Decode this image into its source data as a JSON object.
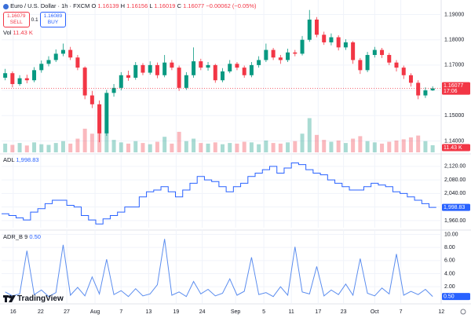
{
  "header": {
    "symbol": "Euro / U.S. Dollar · 1h · FXCM",
    "ohlc": [
      {
        "label": "O",
        "value": 1.16139
      },
      {
        "label": "H",
        "value": 1.16156
      },
      {
        "label": "L",
        "value": 1.16019
      },
      {
        "label": "C",
        "value": 1.16077
      }
    ],
    "change": "−0.00062 (−0.05%)",
    "sell": {
      "price": 1.16079,
      "label": "SELL"
    },
    "spread": 0.1,
    "buy": {
      "price": 1.16089,
      "label": "BUY"
    }
  },
  "logo": "TradingView",
  "chart_data": [
    {
      "type": "candlestick",
      "up_color": "#089981",
      "down_color": "#f23645",
      "grid": true,
      "xlim": [
        -0.5,
        60.5
      ],
      "ylim": [
        1.1355,
        1.1945
      ],
      "yticks": [
        {
          "value": 1.19,
          "label": "1.19000"
        },
        {
          "value": 1.18,
          "label": "1.18000"
        },
        {
          "value": 1.17,
          "label": "1.17000"
        },
        {
          "value": 1.16,
          "label": "1.16000"
        },
        {
          "value": 1.15,
          "label": "1.15000"
        },
        {
          "value": 1.14,
          "label": "1.14000"
        }
      ],
      "open": [
        1.165,
        1.1668,
        1.1625,
        1.1648,
        1.164,
        1.168,
        1.1705,
        1.172,
        1.1745,
        1.176,
        1.173,
        1.169,
        1.158,
        1.1545,
        1.143,
        1.159,
        1.161,
        1.166,
        1.165,
        1.17,
        1.167,
        1.17,
        1.166,
        1.171,
        1.169,
        1.161,
        1.166,
        1.1715,
        1.169,
        1.17,
        1.164,
        1.1675,
        1.1705,
        1.169,
        1.166,
        1.17,
        1.172,
        1.176,
        1.173,
        1.172,
        1.175,
        1.1745,
        1.18,
        1.188,
        1.182,
        1.179,
        1.181,
        1.177,
        1.179,
        1.172,
        1.168,
        1.174,
        1.176,
        1.174,
        1.171,
        1.169,
        1.166,
        1.163,
        1.158,
        1.16
      ],
      "high": [
        1.1685,
        1.1675,
        1.166,
        1.1662,
        1.1692,
        1.1718,
        1.1735,
        1.1762,
        1.1785,
        1.1772,
        1.174,
        1.1695,
        1.1598,
        1.156,
        1.1602,
        1.1625,
        1.1672,
        1.1678,
        1.1712,
        1.1708,
        1.1715,
        1.171,
        1.174,
        1.172,
        1.1698,
        1.1672,
        1.177,
        1.1725,
        1.1712,
        1.1705,
        1.1688,
        1.172,
        1.1712,
        1.1698,
        1.1712,
        1.1735,
        1.1785,
        1.1768,
        1.174,
        1.1765,
        1.176,
        1.1815,
        1.1918,
        1.189,
        1.1832,
        1.1825,
        1.1818,
        1.1802,
        1.1795,
        1.1728,
        1.1752,
        1.1772,
        1.1768,
        1.1748,
        1.172,
        1.1698,
        1.1668,
        1.164,
        1.1612,
        1.1616
      ],
      "low": [
        1.164,
        1.1612,
        1.1618,
        1.1628,
        1.1632,
        1.167,
        1.1695,
        1.1712,
        1.1735,
        1.172,
        1.168,
        1.1565,
        1.153,
        1.1395,
        1.142,
        1.1575,
        1.16,
        1.1638,
        1.1642,
        1.166,
        1.1662,
        1.1648,
        1.1652,
        1.168,
        1.1598,
        1.1602,
        1.165,
        1.168,
        1.1678,
        1.163,
        1.1632,
        1.1668,
        1.168,
        1.165,
        1.1652,
        1.169,
        1.1712,
        1.172,
        1.1705,
        1.1712,
        1.1735,
        1.1738,
        1.1792,
        1.181,
        1.178,
        1.1778,
        1.1758,
        1.176,
        1.1705,
        1.1665,
        1.1672,
        1.173,
        1.1728,
        1.17,
        1.1675,
        1.1645,
        1.1615,
        1.1565,
        1.157,
        1.1598
      ],
      "close": [
        1.1668,
        1.1625,
        1.1648,
        1.164,
        1.168,
        1.1705,
        1.172,
        1.1745,
        1.176,
        1.173,
        1.169,
        1.158,
        1.1545,
        1.143,
        1.159,
        1.161,
        1.166,
        1.165,
        1.17,
        1.167,
        1.17,
        1.166,
        1.171,
        1.169,
        1.161,
        1.166,
        1.1715,
        1.169,
        1.17,
        1.164,
        1.1675,
        1.1705,
        1.169,
        1.166,
        1.17,
        1.172,
        1.176,
        1.173,
        1.172,
        1.175,
        1.1745,
        1.18,
        1.188,
        1.182,
        1.179,
        1.181,
        1.177,
        1.179,
        1.172,
        1.168,
        1.174,
        1.176,
        1.174,
        1.171,
        1.169,
        1.166,
        1.163,
        1.158,
        1.16,
        1.1608
      ],
      "last": {
        "value": 1.16077,
        "time": "17:06"
      },
      "volume": {
        "name": "Vol",
        "ylim": [
          0,
          240000
        ],
        "values": [
          14000,
          12000,
          15000,
          11000,
          16000,
          13000,
          12000,
          15000,
          18000,
          14000,
          22000,
          38000,
          30000,
          62000,
          35000,
          20000,
          16000,
          14000,
          18000,
          15000,
          13000,
          17000,
          25000,
          14000,
          33000,
          18000,
          22000,
          15000,
          14000,
          16000,
          13000,
          15000,
          14000,
          17000,
          16000,
          13000,
          19000,
          15000,
          14000,
          16000,
          18000,
          30000,
          55000,
          28000,
          20000,
          17000,
          19000,
          15000,
          22000,
          26000,
          18000,
          16000,
          14000,
          17000,
          19000,
          21000,
          24000,
          27000,
          18000,
          11430
        ],
        "last": {
          "value": 11430,
          "label": "11.43 K"
        }
      }
    },
    {
      "type": "step",
      "name": "ADL",
      "color": "#2962ff",
      "grid": true,
      "xlim": [
        -0.5,
        60.5
      ],
      "ylim": [
        1939,
        2152
      ],
      "yticks": [
        {
          "value": 2120,
          "label": "2,120.00"
        },
        {
          "value": 2080,
          "label": "2,080.00"
        },
        {
          "value": 2040,
          "label": "2,040.00"
        },
        {
          "value": 2000,
          "label": "2,000.00"
        },
        {
          "value": 1960,
          "label": "1,960.00"
        }
      ],
      "values": [
        1980,
        1975,
        1968,
        1962,
        1985,
        1995,
        2010,
        2020,
        2020,
        2005,
        2000,
        1975,
        1962,
        1950,
        1965,
        1975,
        1985,
        2000,
        2000,
        2030,
        2045,
        2050,
        2060,
        2045,
        2030,
        2050,
        2070,
        2090,
        2080,
        2075,
        2060,
        2045,
        2060,
        2070,
        2090,
        2100,
        2110,
        2120,
        2100,
        2115,
        2130,
        2125,
        2110,
        2100,
        2095,
        2080,
        2070,
        2060,
        2050,
        2050,
        2060,
        2070,
        2065,
        2060,
        2045,
        2040,
        2030,
        2020,
        2010,
        1998.83
      ],
      "last": {
        "value": 1998.83,
        "label": "1,998.83"
      }
    },
    {
      "type": "line",
      "name": "ADR_B",
      "length": 9,
      "color": "#5b8def",
      "grid": true,
      "xlim": [
        -0.5,
        60.5
      ],
      "ylim": [
        -0.5,
        10.3
      ],
      "yticks": [
        {
          "value": 10,
          "label": "10.00"
        },
        {
          "value": 8,
          "label": "8.00"
        },
        {
          "value": 6,
          "label": "6.00"
        },
        {
          "value": 4,
          "label": "4.00"
        },
        {
          "value": 2,
          "label": "2.00"
        }
      ],
      "values": [
        1.2,
        0.6,
        0.9,
        7.5,
        0.8,
        1.5,
        0.5,
        1.1,
        8.4,
        0.7,
        1.9,
        0.6,
        3.5,
        0.9,
        6.2,
        0.8,
        1.4,
        0.5,
        1.7,
        0.6,
        0.9,
        2.3,
        9.3,
        0.7,
        1.2,
        0.5,
        2.8,
        0.9,
        1.6,
        0.6,
        1.0,
        3.2,
        0.7,
        1.3,
        6.5,
        0.8,
        1.1,
        0.5,
        2.0,
        0.7,
        8.1,
        1.2,
        0.9,
        5.1,
        0.6,
        1.5,
        0.8,
        2.4,
        0.7,
        6.3,
        1.0,
        0.6,
        1.8,
        0.9,
        7.0,
        0.7,
        1.3,
        0.8,
        1.6,
        0.5
      ],
      "last": {
        "value": 0.5,
        "label": "0.50"
      },
      "xticks": [
        {
          "value": 1.1,
          "label": "16"
        },
        {
          "value": 4.9,
          "label": "22"
        },
        {
          "value": 8.5,
          "label": "27"
        },
        {
          "value": 12.4,
          "label": "Aug"
        },
        {
          "value": 16,
          "label": "7"
        },
        {
          "value": 19.8,
          "label": "13"
        },
        {
          "value": 23.6,
          "label": "19"
        },
        {
          "value": 27.2,
          "label": "24"
        },
        {
          "value": 31.8,
          "label": "Sep"
        },
        {
          "value": 35.7,
          "label": "5"
        },
        {
          "value": 39.5,
          "label": "11"
        },
        {
          "value": 43.2,
          "label": "17"
        },
        {
          "value": 46.7,
          "label": "23"
        },
        {
          "value": 51,
          "label": "Oct"
        },
        {
          "value": 54.6,
          "label": "7"
        },
        {
          "value": 60.2,
          "label": "12"
        }
      ]
    }
  ]
}
